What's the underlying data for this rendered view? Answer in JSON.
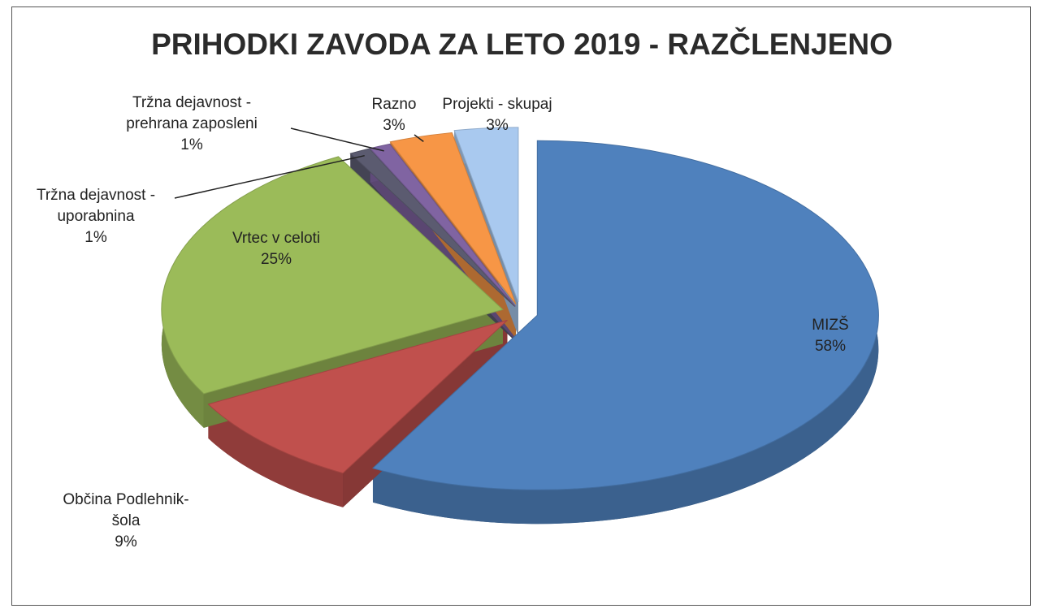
{
  "chart_data": {
    "type": "pie",
    "title": "PRIHODKI ZAVODA ZA LETO 2019 - RAZČLENJENO",
    "categories": [
      "MIZŠ",
      "Občina Podlehnik-šola",
      "Vrtec v celoti",
      "Tržna dejavnost - uporabnina",
      "Tržna dejavnost - prehrana zaposleni",
      "Razno",
      "Projekti - skupaj"
    ],
    "values": [
      58,
      9,
      25,
      1,
      1,
      3,
      3
    ],
    "value_labels": [
      "58%",
      "9%",
      "25%",
      "1%",
      "1%",
      "3%",
      "3%"
    ],
    "colors": [
      "#4f81bd",
      "#c0504d",
      "#9bbb59",
      "#5b5b70",
      "#8064a2",
      "#f79646",
      "#a9c9ef"
    ]
  }
}
